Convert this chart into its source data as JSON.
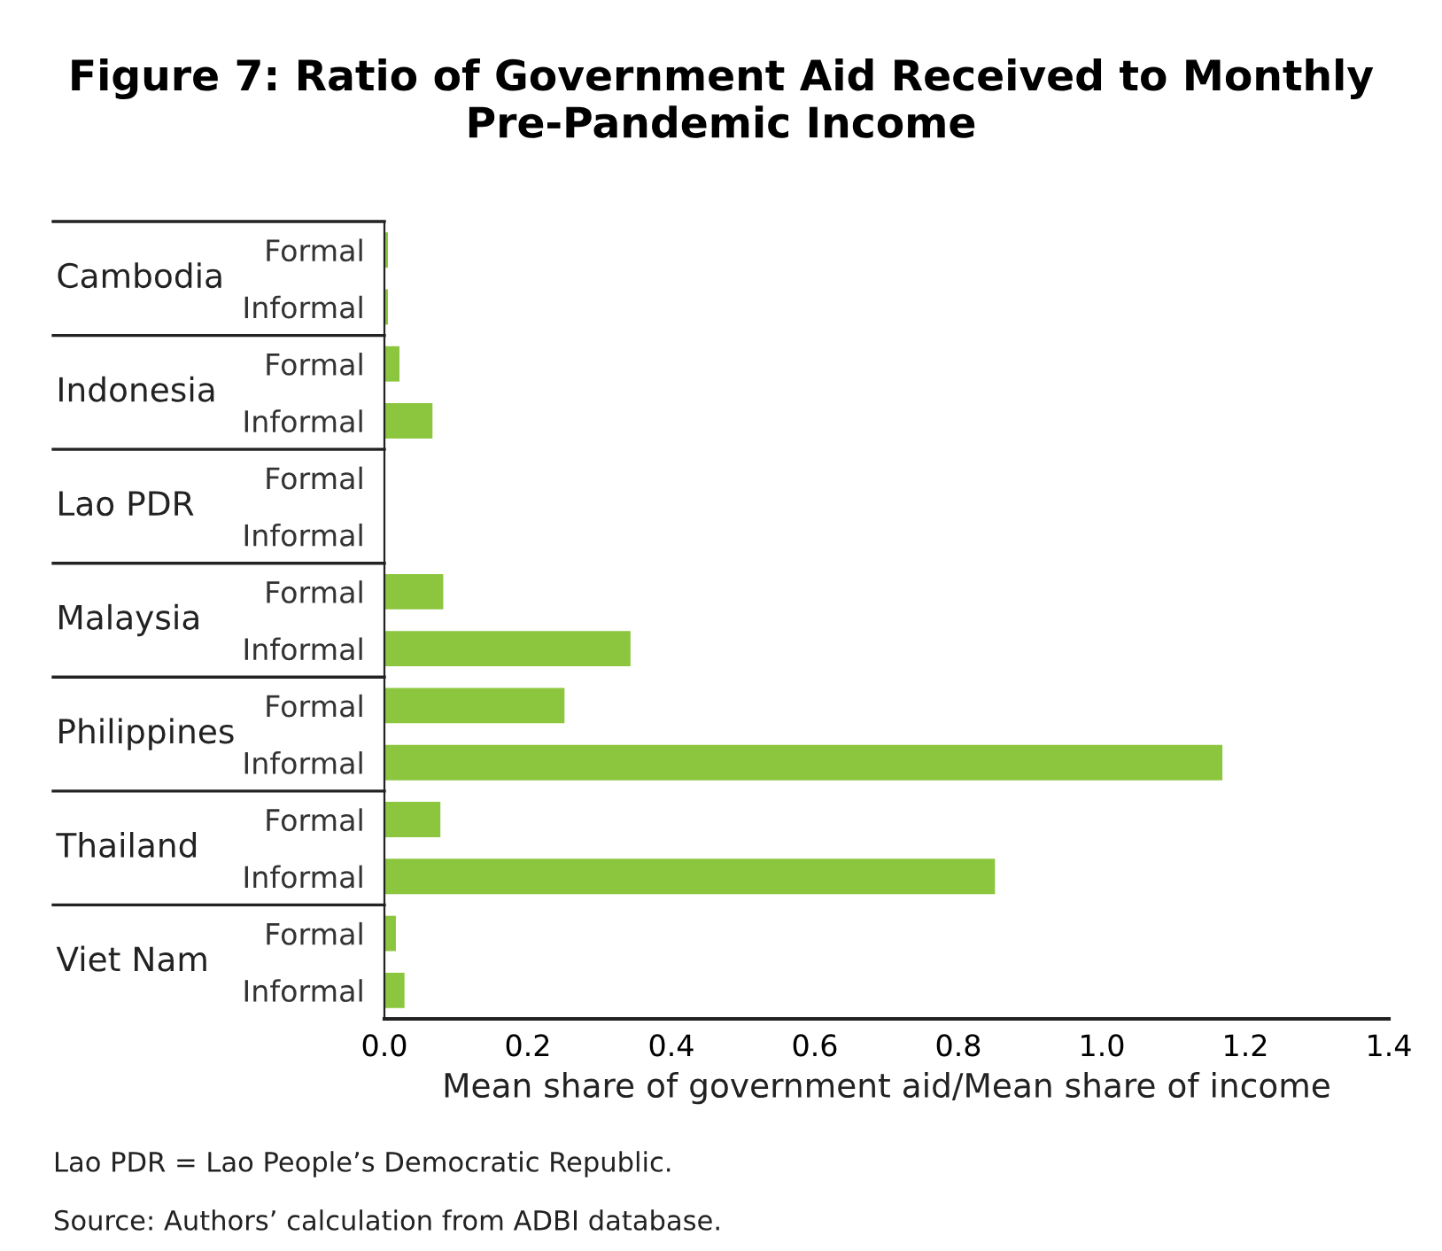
{
  "chart_data": {
    "type": "bar",
    "orientation": "horizontal",
    "title": "Figure 7: Ratio of Government Aid Received to Monthly\nPre-Pandemic Income",
    "xlabel": "Mean share of government aid/Mean share of income",
    "categories": [
      "Cambodia",
      "Indonesia",
      "Lao PDR",
      "Malaysia",
      "Philippines",
      "Thailand",
      "Viet Nam"
    ],
    "series": [
      {
        "name": "Formal",
        "color": "#8cc63f",
        "values": [
          0.005,
          0.021,
          null,
          0.082,
          0.251,
          0.078,
          0.016
        ]
      },
      {
        "name": "Informal",
        "color": "#8cc63f",
        "values": [
          0.005,
          0.067,
          null,
          0.343,
          1.168,
          0.851,
          0.028
        ]
      }
    ],
    "xlim": [
      0,
      1.4
    ],
    "xticks": [
      {
        "value": 0,
        "label": "0.0"
      },
      {
        "value": 0.2,
        "label": "0.2"
      },
      {
        "value": 0.4,
        "label": "0.4"
      },
      {
        "value": 0.6,
        "label": "0.6"
      },
      {
        "value": 0.8,
        "label": "0.8"
      },
      {
        "value": 1.0,
        "label": "1.0"
      },
      {
        "value": 1.2,
        "label": "1.2"
      },
      {
        "value": 1.4,
        "label": "1.4"
      }
    ],
    "grid": false,
    "legend": false,
    "annotations": [
      "Lao PDR = Lao People’s Democratic Republic.",
      "Source: Authors’ calculation from ADBI database."
    ]
  }
}
